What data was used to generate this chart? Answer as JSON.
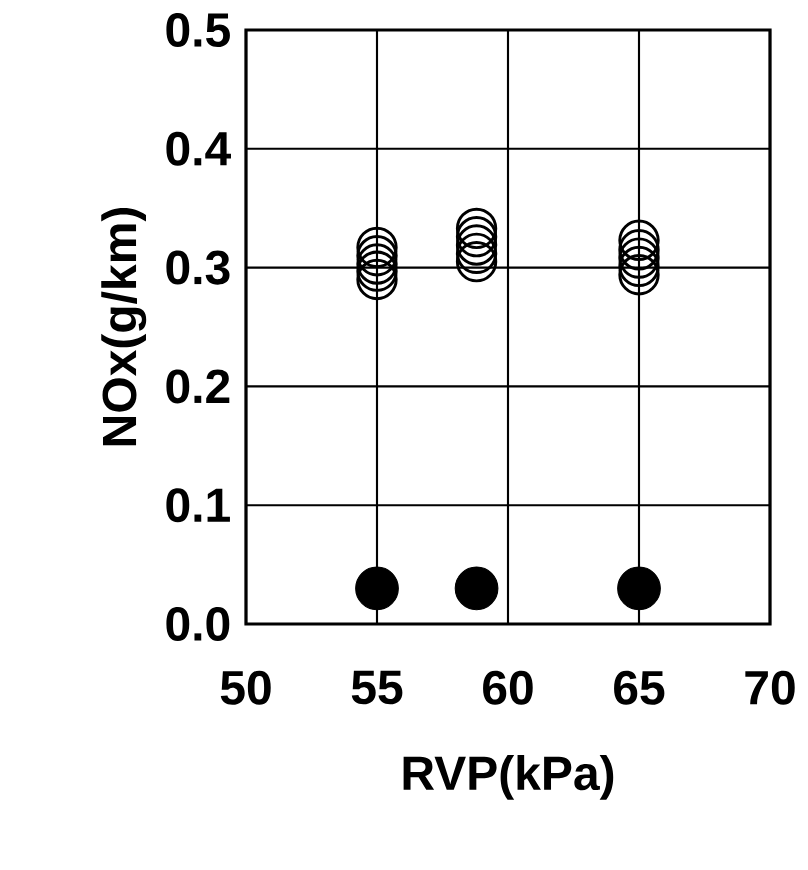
{
  "chart_data": {
    "type": "scatter",
    "xlabel": "RVP(kPa)",
    "ylabel": "NOx(g/km)",
    "xlim": [
      50,
      70
    ],
    "xticks": [
      50,
      55,
      60,
      65,
      70
    ],
    "ylim": [
      0,
      0.5
    ],
    "yticks": [
      {
        "value": 0,
        "label": "0.0"
      },
      {
        "value": 0.1,
        "label": "0.1"
      },
      {
        "value": 0.2,
        "label": "0.2"
      },
      {
        "value": 0.3,
        "label": "0.3"
      },
      {
        "value": 0.4,
        "label": "0.4"
      },
      {
        "value": 0.5,
        "label": "0.5"
      }
    ],
    "grid": true,
    "marker": "circle",
    "series": [
      {
        "color": "#000000",
        "x": [
          55,
          55,
          55,
          55,
          55,
          58.8,
          58.8,
          58.8,
          58.8,
          58.8,
          65,
          65,
          65,
          65,
          65
        ],
        "values": [
          0.29,
          0.297,
          0.303,
          0.31,
          0.317,
          0.305,
          0.312,
          0.319,
          0.326,
          0.333,
          0.294,
          0.301,
          0.308,
          0.315,
          0.323
        ]
      },
      {
        "color": "#000000",
        "x": [
          55,
          58.8,
          65
        ],
        "values": [
          0.03,
          0.03,
          0.03
        ]
      }
    ]
  }
}
